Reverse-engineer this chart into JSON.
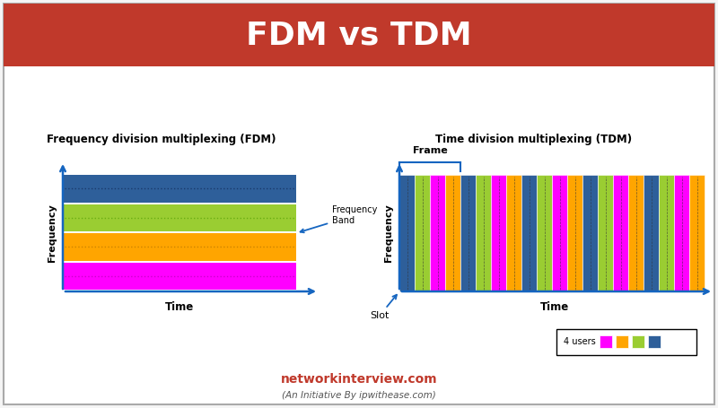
{
  "title": "FDM vs TDM",
  "title_bg": "#c0392b",
  "title_color": "#ffffff",
  "title_fontsize": 26,
  "fdm_title": "Frequency division multiplexing (FDM)",
  "fdm_ylabel": "Frequency",
  "fdm_xlabel": "Time",
  "fdm_annotation": "Frequency\nBand",
  "fdm_band_colors": [
    "#ff00ff",
    "#ffa500",
    "#9acd32",
    "#2e5f9a"
  ],
  "fdm_band_dotcolors": [
    "#cc00cc",
    "#cc8400",
    "#6aad12",
    "#1a3a6c"
  ],
  "tdm_title": "Time division multiplexing (TDM)",
  "tdm_ylabel": "Frequency",
  "tdm_xlabel": "Time",
  "tdm_slot_label": "Slot",
  "tdm_frame_label": "Frame",
  "tdm_colors": [
    "#2e5f9a",
    "#9acd32",
    "#ff00ff",
    "#ffa500"
  ],
  "tdm_num_frames": 5,
  "tdm_slots_per_frame": 4,
  "legend_label": "4 users",
  "legend_colors": [
    "#ff00ff",
    "#ffa500",
    "#9acd32",
    "#2e5f9a"
  ],
  "footer_main": "networkinterview.com",
  "footer_sub": "(An Initiative By ipwithease.com)",
  "footer_color": "#c0392b",
  "footer_sub_color": "#555555",
  "bg_color": "#f5f5f5",
  "border_color": "#aaaaaa",
  "slide_bg": "#ffffff"
}
